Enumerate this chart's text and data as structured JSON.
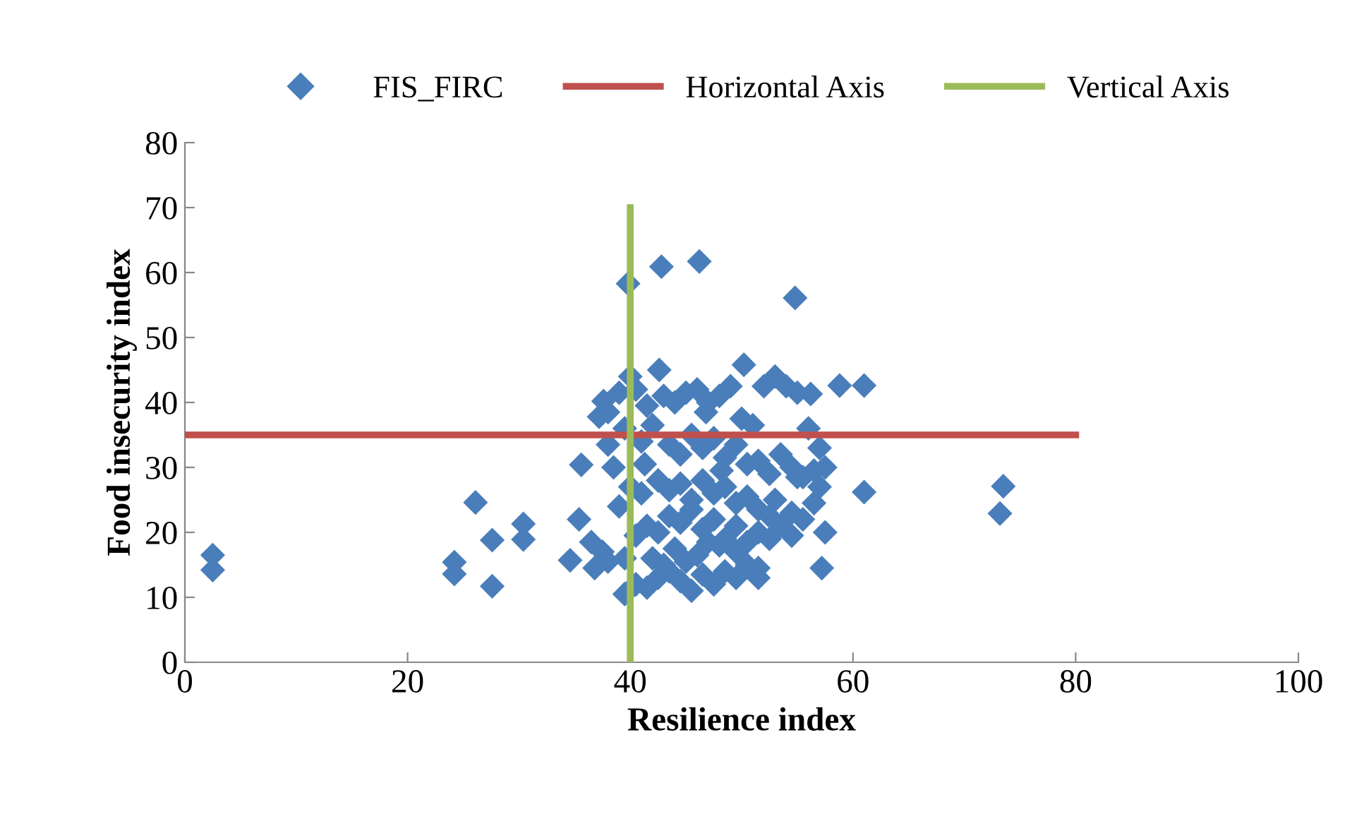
{
  "chart_data": {
    "type": "scatter",
    "xlabel": "Resilience index",
    "ylabel": "Food insecurity index",
    "xlim": [
      0,
      100
    ],
    "ylim": [
      0,
      80
    ],
    "xticks": [
      0,
      20,
      40,
      60,
      80,
      100
    ],
    "yticks": [
      0,
      10,
      20,
      30,
      40,
      50,
      60,
      70,
      80
    ],
    "legend": "top",
    "series": [
      {
        "name": "FIS_FIRC",
        "color": "#4a7ebb",
        "marker": "diamond",
        "x": [
          2.5,
          2.5,
          24.2,
          24.2,
          26.1,
          27.6,
          27.6,
          30.4,
          30.4,
          34.6,
          35.4,
          35.6,
          39.8,
          42.8,
          46.2,
          54.8,
          61,
          58.8,
          56.2,
          61,
          73.5,
          73.2,
          57.2,
          50.2,
          42.6,
          40,
          37.6,
          37.2,
          38,
          39,
          40.5,
          41.5,
          43,
          44,
          45,
          46,
          47,
          48,
          49,
          50,
          51,
          52,
          53,
          54,
          55,
          56,
          57,
          57.5,
          38,
          38.5,
          39.5,
          41,
          42,
          43.5,
          44.5,
          45.5,
          46.5,
          47.5,
          48.5,
          49.5,
          50.5,
          51.5,
          52.5,
          53.5,
          54.5,
          55.5,
          56.5,
          57,
          36.5,
          37.5,
          39,
          40,
          41,
          42.5,
          43.5,
          44.5,
          45.5,
          46.5,
          47.5,
          48.5,
          49.5,
          50.5,
          51.5,
          52.5,
          53.5,
          54.5,
          55.5,
          36.8,
          38,
          39.5,
          40.5,
          41.5,
          42.5,
          43.5,
          44.5,
          45.5,
          46.5,
          47.5,
          48.5,
          49.5,
          50.5,
          51.5,
          52.5,
          54.5,
          39.5,
          40.5,
          41.5,
          42.5,
          43.5,
          44.5,
          45.5,
          46.5,
          47.5,
          48.5,
          49.5,
          50.5,
          51.5,
          44,
          46,
          48,
          42,
          47,
          49.5,
          45,
          43,
          51.5,
          53,
          55,
          56.5,
          57.5,
          41.3,
          46.8,
          48.2
        ],
        "values": [
          16.5,
          14.2,
          15.4,
          13.6,
          24.6,
          18.8,
          11.7,
          21.3,
          18.9,
          15.7,
          22.0,
          30.4,
          58.3,
          60.9,
          61.7,
          56.1,
          42.6,
          42.6,
          41.3,
          26.2,
          27.1,
          22.9,
          14.5,
          45.8,
          45.0,
          44.0,
          40.2,
          37.8,
          38.5,
          41.5,
          42.0,
          39.5,
          41.0,
          40.0,
          41.5,
          42.0,
          40.0,
          41.0,
          42.5,
          37.5,
          36.5,
          42.5,
          44.0,
          42.5,
          41.5,
          36.0,
          33.0,
          30.0,
          33.5,
          30.0,
          36.0,
          34.0,
          36.5,
          33.5,
          32.0,
          35.0,
          33.0,
          34.5,
          31.5,
          33.5,
          30.5,
          31.0,
          29.0,
          32.0,
          30.0,
          28.5,
          29.5,
          27.0,
          18.5,
          17.0,
          24.0,
          27.0,
          26.0,
          28.0,
          26.5,
          27.5,
          25.0,
          28.0,
          26.0,
          27.0,
          24.5,
          25.5,
          23.5,
          22.5,
          21.0,
          23.0,
          22.0,
          14.5,
          15.5,
          16.0,
          19.5,
          21.0,
          20.0,
          22.5,
          21.5,
          23.5,
          20.5,
          22.0,
          19.0,
          21.0,
          18.5,
          20.0,
          19.0,
          19.5,
          10.5,
          12.0,
          11.5,
          13.0,
          14.0,
          12.5,
          11.0,
          13.5,
          12.0,
          14.0,
          13.0,
          15.0,
          14.5,
          17.5,
          16.5,
          18.0,
          16.0,
          18.5,
          17.0,
          15.5,
          15.0,
          13.0,
          25.0,
          28.5,
          24.5,
          20.0,
          30.5,
          38.5,
          29.5
        ]
      },
      {
        "name": "Horizontal Axis",
        "color": "#c0504d",
        "type": "line",
        "x": [
          0,
          80
        ],
        "values": [
          35,
          35
        ]
      },
      {
        "name": "Vertical Axis",
        "color": "#9bbb59",
        "type": "line",
        "x": [
          40,
          40
        ],
        "values": [
          0,
          70
        ]
      }
    ]
  }
}
